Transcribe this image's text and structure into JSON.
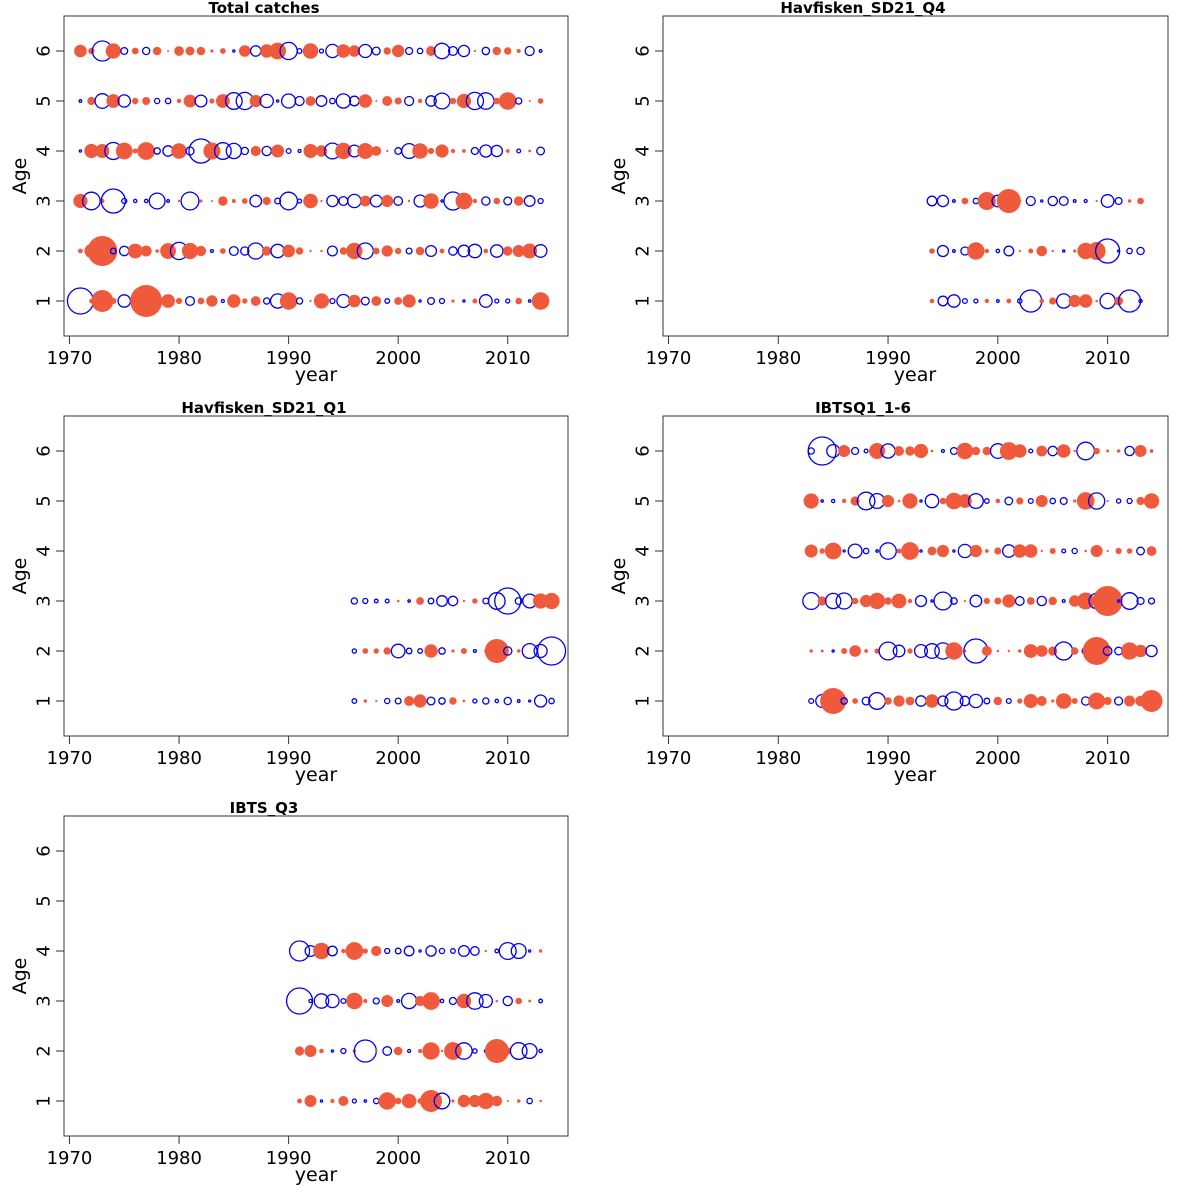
{
  "colors": {
    "positive": "#f05a3c",
    "negative": "#0000ee",
    "axis": "#333333"
  },
  "chart_data": [
    {
      "type": "scatter",
      "title": "Total catches",
      "xlabel": "year",
      "ylabel": "Age",
      "xlim": [
        1969.5,
        2015.5
      ],
      "ylim": [
        0.3,
        6.7
      ],
      "xticks": [
        1970,
        1980,
        1990,
        2000,
        2010
      ],
      "yticks": [
        1,
        2,
        3,
        4,
        5,
        6
      ],
      "years": [
        1971,
        2013
      ],
      "ages": [
        1,
        2,
        3,
        4,
        5,
        6
      ],
      "seed": 11,
      "max_radius": 18,
      "highlights": [
        {
          "year": 1971,
          "age": 1,
          "size": 13,
          "sign": -1
        },
        {
          "year": 1973,
          "age": 1,
          "size": 11,
          "sign": 1
        },
        {
          "year": 1977,
          "age": 1,
          "size": 16,
          "sign": 1
        },
        {
          "year": 1973,
          "age": 2,
          "size": 15,
          "sign": 1
        },
        {
          "year": 1974,
          "age": 3,
          "size": 12,
          "sign": -1
        },
        {
          "year": 1982,
          "age": 4,
          "size": 12,
          "sign": -1
        },
        {
          "year": 1973,
          "age": 6,
          "size": 10,
          "sign": -1
        }
      ]
    },
    {
      "type": "scatter",
      "title": "Havfisken_SD21_Q4",
      "xlabel": "year",
      "ylabel": "Age",
      "xlim": [
        1969.5,
        2015.5
      ],
      "ylim": [
        0.3,
        6.7
      ],
      "xticks": [
        1970,
        1980,
        1990,
        2000,
        2010
      ],
      "yticks": [
        1,
        2,
        3,
        4,
        5,
        6
      ],
      "years": [
        1994,
        2013
      ],
      "ages": [
        1,
        2,
        3
      ],
      "seed": 23,
      "max_radius": 14,
      "highlights": [
        {
          "year": 2003,
          "age": 1,
          "size": 11,
          "sign": -1
        },
        {
          "year": 2012,
          "age": 1,
          "size": 11,
          "sign": -1
        },
        {
          "year": 2010,
          "age": 2,
          "size": 12,
          "sign": -1
        },
        {
          "year": 2001,
          "age": 3,
          "size": 12,
          "sign": 1
        }
      ]
    },
    {
      "type": "scatter",
      "title": "Havfisken_SD21_Q1",
      "xlabel": "year",
      "ylabel": "Age",
      "xlim": [
        1969.5,
        2015.5
      ],
      "ylim": [
        0.3,
        6.7
      ],
      "xticks": [
        1970,
        1980,
        1990,
        2000,
        2010
      ],
      "yticks": [
        1,
        2,
        3,
        4,
        5,
        6
      ],
      "years": [
        1996,
        2014
      ],
      "ages": [
        1,
        2,
        3
      ],
      "seed": 37,
      "max_radius": 14,
      "highlights": [
        {
          "year": 2014,
          "age": 2,
          "size": 14,
          "sign": -1
        },
        {
          "year": 2009,
          "age": 2,
          "size": 12,
          "sign": 1
        },
        {
          "year": 2010,
          "age": 3,
          "size": 13,
          "sign": -1
        }
      ]
    },
    {
      "type": "scatter",
      "title": "IBTSQ1_1-6",
      "xlabel": "year",
      "ylabel": "Age",
      "xlim": [
        1969.5,
        2015.5
      ],
      "ylim": [
        0.3,
        6.7
      ],
      "xticks": [
        1970,
        1980,
        1990,
        2000,
        2010
      ],
      "yticks": [
        1,
        2,
        3,
        4,
        5,
        6
      ],
      "years": [
        1983,
        2014
      ],
      "ages": [
        1,
        2,
        3,
        4,
        5,
        6
      ],
      "seed": 51,
      "max_radius": 15,
      "highlights": [
        {
          "year": 1984,
          "age": 6,
          "size": 14,
          "sign": -1
        },
        {
          "year": 2010,
          "age": 3,
          "size": 16,
          "sign": 1
        },
        {
          "year": 2009,
          "age": 2,
          "size": 14,
          "sign": 1
        },
        {
          "year": 1998,
          "age": 2,
          "size": 12,
          "sign": -1
        },
        {
          "year": 1985,
          "age": 1,
          "size": 13,
          "sign": 1
        },
        {
          "year": 2014,
          "age": 1,
          "size": 11,
          "sign": 1
        }
      ]
    },
    {
      "type": "scatter",
      "title": "IBTS_Q3",
      "xlabel": "year",
      "ylabel": "Age",
      "xlim": [
        1969.5,
        2015.5
      ],
      "ylim": [
        0.3,
        6.7
      ],
      "xticks": [
        1970,
        1980,
        1990,
        2000,
        2010
      ],
      "yticks": [
        1,
        2,
        3,
        4,
        5,
        6
      ],
      "years": [
        1991,
        2013
      ],
      "ages": [
        1,
        2,
        3,
        4
      ],
      "seed": 67,
      "max_radius": 14,
      "highlights": [
        {
          "year": 1991,
          "age": 3,
          "size": 13,
          "sign": -1
        },
        {
          "year": 1991,
          "age": 4,
          "size": 10,
          "sign": -1
        },
        {
          "year": 1997,
          "age": 2,
          "size": 11,
          "sign": -1
        },
        {
          "year": 2003,
          "age": 1,
          "size": 11,
          "sign": 1
        },
        {
          "year": 2009,
          "age": 2,
          "size": 12,
          "sign": 1
        }
      ]
    }
  ]
}
